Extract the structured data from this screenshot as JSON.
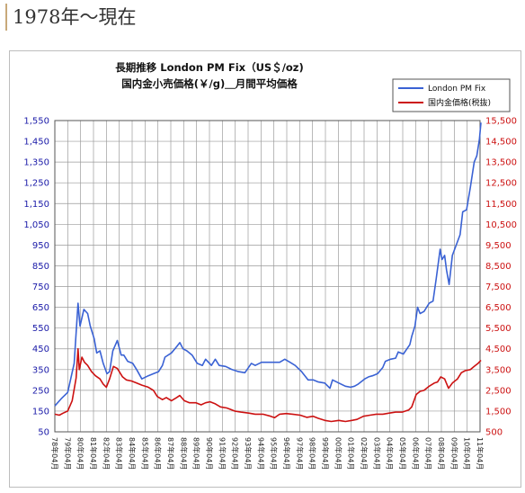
{
  "page": {
    "heading": "1978年～現在"
  },
  "chart_data": {
    "type": "line",
    "title": "長期推移 London PM Fix（US＄/oz)",
    "subtitle": "国内金小売価格(￥/g)＿月間平均価格",
    "x_labels": [
      "78年04月",
      "79年04月",
      "80年04月",
      "81年04月",
      "82年04月",
      "83年04月",
      "84年04月",
      "85年04月",
      "86年04月",
      "87年04月",
      "88年04月",
      "89年04月",
      "90年04月",
      "91年04月",
      "92年04月",
      "93年04月",
      "94年04月",
      "95年04月",
      "96年04月",
      "97年04月",
      "98年04月",
      "99年04月",
      "00年04月",
      "01年04月",
      "02年04月",
      "03年04月",
      "04年04月",
      "05年04月",
      "06年04月",
      "07年04月",
      "08年04月",
      "09年04月",
      "10年04月",
      "11年04月"
    ],
    "y_left": {
      "min": 50,
      "max": 1550,
      "step": 100,
      "ticks": [
        "50",
        "150",
        "250",
        "350",
        "450",
        "550",
        "650",
        "750",
        "850",
        "950",
        "1,050",
        "1,150",
        "1,250",
        "1,350",
        "1,450",
        "1,550"
      ]
    },
    "y_right": {
      "min": 500,
      "max": 15500,
      "step": 1000,
      "ticks": [
        "500",
        "1,500",
        "2,500",
        "3,500",
        "4,500",
        "5,500",
        "6,500",
        "7,500",
        "8,500",
        "9,500",
        "10,500",
        "11,500",
        "12,500",
        "13,500",
        "14,500",
        "15,500"
      ]
    },
    "grid": true,
    "legend_position": "top-right",
    "series": [
      {
        "name": "London PM Fix",
        "axis": "left",
        "color": "#3a62d4",
        "points": [
          [
            1978.25,
            175
          ],
          [
            1978.75,
            210
          ],
          [
            1979.25,
            240
          ],
          [
            1979.75,
            380
          ],
          [
            1980.05,
            670
          ],
          [
            1980.2,
            560
          ],
          [
            1980.5,
            640
          ],
          [
            1980.8,
            620
          ],
          [
            1981.0,
            560
          ],
          [
            1981.3,
            500
          ],
          [
            1981.5,
            430
          ],
          [
            1981.75,
            440
          ],
          [
            1982.0,
            380
          ],
          [
            1982.3,
            330
          ],
          [
            1982.5,
            340
          ],
          [
            1982.75,
            440
          ],
          [
            1983.1,
            490
          ],
          [
            1983.4,
            420
          ],
          [
            1983.6,
            420
          ],
          [
            1983.9,
            390
          ],
          [
            1984.3,
            380
          ],
          [
            1984.6,
            350
          ],
          [
            1985.0,
            305
          ],
          [
            1985.5,
            320
          ],
          [
            1985.9,
            330
          ],
          [
            1986.3,
            340
          ],
          [
            1986.6,
            370
          ],
          [
            1986.8,
            410
          ],
          [
            1987.3,
            430
          ],
          [
            1987.7,
            460
          ],
          [
            1987.95,
            480
          ],
          [
            1988.2,
            450
          ],
          [
            1988.5,
            440
          ],
          [
            1988.9,
            420
          ],
          [
            1989.3,
            380
          ],
          [
            1989.7,
            370
          ],
          [
            1989.95,
            400
          ],
          [
            1990.4,
            370
          ],
          [
            1990.7,
            400
          ],
          [
            1991.0,
            370
          ],
          [
            1991.5,
            365
          ],
          [
            1992.0,
            350
          ],
          [
            1992.5,
            340
          ],
          [
            1993.0,
            335
          ],
          [
            1993.5,
            380
          ],
          [
            1993.8,
            370
          ],
          [
            1994.3,
            385
          ],
          [
            1995.0,
            385
          ],
          [
            1995.7,
            385
          ],
          [
            1996.1,
            400
          ],
          [
            1996.5,
            385
          ],
          [
            1996.9,
            370
          ],
          [
            1997.4,
            340
          ],
          [
            1997.9,
            300
          ],
          [
            1998.3,
            300
          ],
          [
            1998.7,
            290
          ],
          [
            1999.2,
            285
          ],
          [
            1999.6,
            260
          ],
          [
            1999.8,
            300
          ],
          [
            2000.3,
            285
          ],
          [
            2000.8,
            270
          ],
          [
            2001.2,
            265
          ],
          [
            2001.5,
            270
          ],
          [
            2001.8,
            280
          ],
          [
            2002.3,
            305
          ],
          [
            2002.6,
            315
          ],
          [
            2002.9,
            320
          ],
          [
            2003.3,
            330
          ],
          [
            2003.7,
            360
          ],
          [
            2003.9,
            390
          ],
          [
            2004.3,
            400
          ],
          [
            2004.7,
            405
          ],
          [
            2004.9,
            435
          ],
          [
            2005.3,
            425
          ],
          [
            2005.8,
            470
          ],
          [
            2005.95,
            510
          ],
          [
            2006.2,
            560
          ],
          [
            2006.4,
            650
          ],
          [
            2006.6,
            620
          ],
          [
            2006.9,
            630
          ],
          [
            2007.3,
            670
          ],
          [
            2007.6,
            680
          ],
          [
            2007.85,
            790
          ],
          [
            2008.15,
            930
          ],
          [
            2008.3,
            880
          ],
          [
            2008.5,
            900
          ],
          [
            2008.65,
            830
          ],
          [
            2008.85,
            760
          ],
          [
            2009.1,
            900
          ],
          [
            2009.4,
            950
          ],
          [
            2009.7,
            1000
          ],
          [
            2009.9,
            1110
          ],
          [
            2010.2,
            1120
          ],
          [
            2010.5,
            1230
          ],
          [
            2010.8,
            1350
          ],
          [
            2011.0,
            1380
          ],
          [
            2011.2,
            1460
          ],
          [
            2011.32,
            1540
          ]
        ]
      },
      {
        "name": "国内金価格(税抜)",
        "axis": "right",
        "color": "#cc1111",
        "points": [
          [
            1978.25,
            1350
          ],
          [
            1978.6,
            1300
          ],
          [
            1978.9,
            1400
          ],
          [
            1979.25,
            1500
          ],
          [
            1979.6,
            2000
          ],
          [
            1979.9,
            3100
          ],
          [
            1980.05,
            4500
          ],
          [
            1980.15,
            3500
          ],
          [
            1980.35,
            4100
          ],
          [
            1980.55,
            3850
          ],
          [
            1980.8,
            3700
          ],
          [
            1981.1,
            3400
          ],
          [
            1981.4,
            3200
          ],
          [
            1981.75,
            3050
          ],
          [
            1982.0,
            2800
          ],
          [
            1982.25,
            2650
          ],
          [
            1982.5,
            3050
          ],
          [
            1982.8,
            3650
          ],
          [
            1983.1,
            3550
          ],
          [
            1983.5,
            3150
          ],
          [
            1983.8,
            3000
          ],
          [
            1984.2,
            2950
          ],
          [
            1984.6,
            2850
          ],
          [
            1985.0,
            2750
          ],
          [
            1985.5,
            2650
          ],
          [
            1985.9,
            2500
          ],
          [
            1986.2,
            2200
          ],
          [
            1986.6,
            2050
          ],
          [
            1986.9,
            2150
          ],
          [
            1987.3,
            2000
          ],
          [
            1987.7,
            2150
          ],
          [
            1987.95,
            2250
          ],
          [
            1988.3,
            2000
          ],
          [
            1988.7,
            1900
          ],
          [
            1989.2,
            1900
          ],
          [
            1989.6,
            1800
          ],
          [
            1989.95,
            1900
          ],
          [
            1990.3,
            1950
          ],
          [
            1990.7,
            1850
          ],
          [
            1991.1,
            1700
          ],
          [
            1991.6,
            1650
          ],
          [
            1992.2,
            1500
          ],
          [
            1992.7,
            1450
          ],
          [
            1993.3,
            1400
          ],
          [
            1993.8,
            1350
          ],
          [
            1994.4,
            1350
          ],
          [
            1995.0,
            1250
          ],
          [
            1995.3,
            1180
          ],
          [
            1995.7,
            1350
          ],
          [
            1996.2,
            1380
          ],
          [
            1996.7,
            1350
          ],
          [
            1997.3,
            1300
          ],
          [
            1997.8,
            1200
          ],
          [
            1998.3,
            1250
          ],
          [
            1998.7,
            1150
          ],
          [
            1999.2,
            1050
          ],
          [
            1999.7,
            1000
          ],
          [
            2000.3,
            1050
          ],
          [
            2000.8,
            1000
          ],
          [
            2001.3,
            1050
          ],
          [
            2001.7,
            1100
          ],
          [
            2002.2,
            1250
          ],
          [
            2002.7,
            1300
          ],
          [
            2003.2,
            1350
          ],
          [
            2003.7,
            1350
          ],
          [
            2004.2,
            1400
          ],
          [
            2004.7,
            1450
          ],
          [
            2005.2,
            1450
          ],
          [
            2005.7,
            1550
          ],
          [
            2005.95,
            1700
          ],
          [
            2006.3,
            2300
          ],
          [
            2006.6,
            2450
          ],
          [
            2006.9,
            2500
          ],
          [
            2007.3,
            2700
          ],
          [
            2007.7,
            2850
          ],
          [
            2007.95,
            2900
          ],
          [
            2008.2,
            3150
          ],
          [
            2008.5,
            3050
          ],
          [
            2008.8,
            2600
          ],
          [
            2009.1,
            2850
          ],
          [
            2009.5,
            3050
          ],
          [
            2009.8,
            3350
          ],
          [
            2010.1,
            3450
          ],
          [
            2010.5,
            3500
          ],
          [
            2010.8,
            3650
          ],
          [
            2011.1,
            3800
          ],
          [
            2011.32,
            3950
          ]
        ]
      }
    ]
  }
}
